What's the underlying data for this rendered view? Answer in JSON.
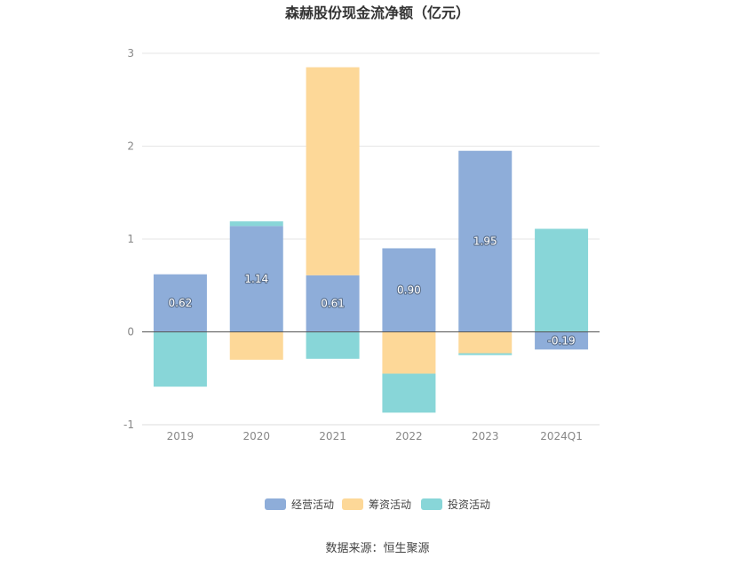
{
  "chart_data": {
    "type": "bar",
    "stacked": true,
    "title": "森赫股份现金流净额（亿元）",
    "categories": [
      "2019",
      "2020",
      "2021",
      "2022",
      "2023",
      "2024Q1"
    ],
    "series": [
      {
        "name": "经营活动",
        "color": "#8eadd9",
        "values": [
          0.62,
          1.14,
          0.61,
          0.9,
          1.95,
          -0.19
        ],
        "labels": [
          "0.62",
          "1.14",
          "0.61",
          "0.90",
          "1.95",
          "-0.19"
        ]
      },
      {
        "name": "筹资活动",
        "color": "#fdd898",
        "values": [
          0.0,
          -0.3,
          2.24,
          -0.45,
          -0.23,
          0.0
        ]
      },
      {
        "name": "投资活动",
        "color": "#88d6d8",
        "values": [
          -0.59,
          0.05,
          -0.29,
          -0.42,
          -0.02,
          1.11
        ]
      }
    ],
    "yticks": [
      "3",
      "2",
      "1",
      "0",
      "-1"
    ],
    "ylim": [
      -1,
      3
    ],
    "grid": true,
    "legend": "bottom"
  },
  "footer": {
    "source": "数据来源：恒生聚源"
  }
}
